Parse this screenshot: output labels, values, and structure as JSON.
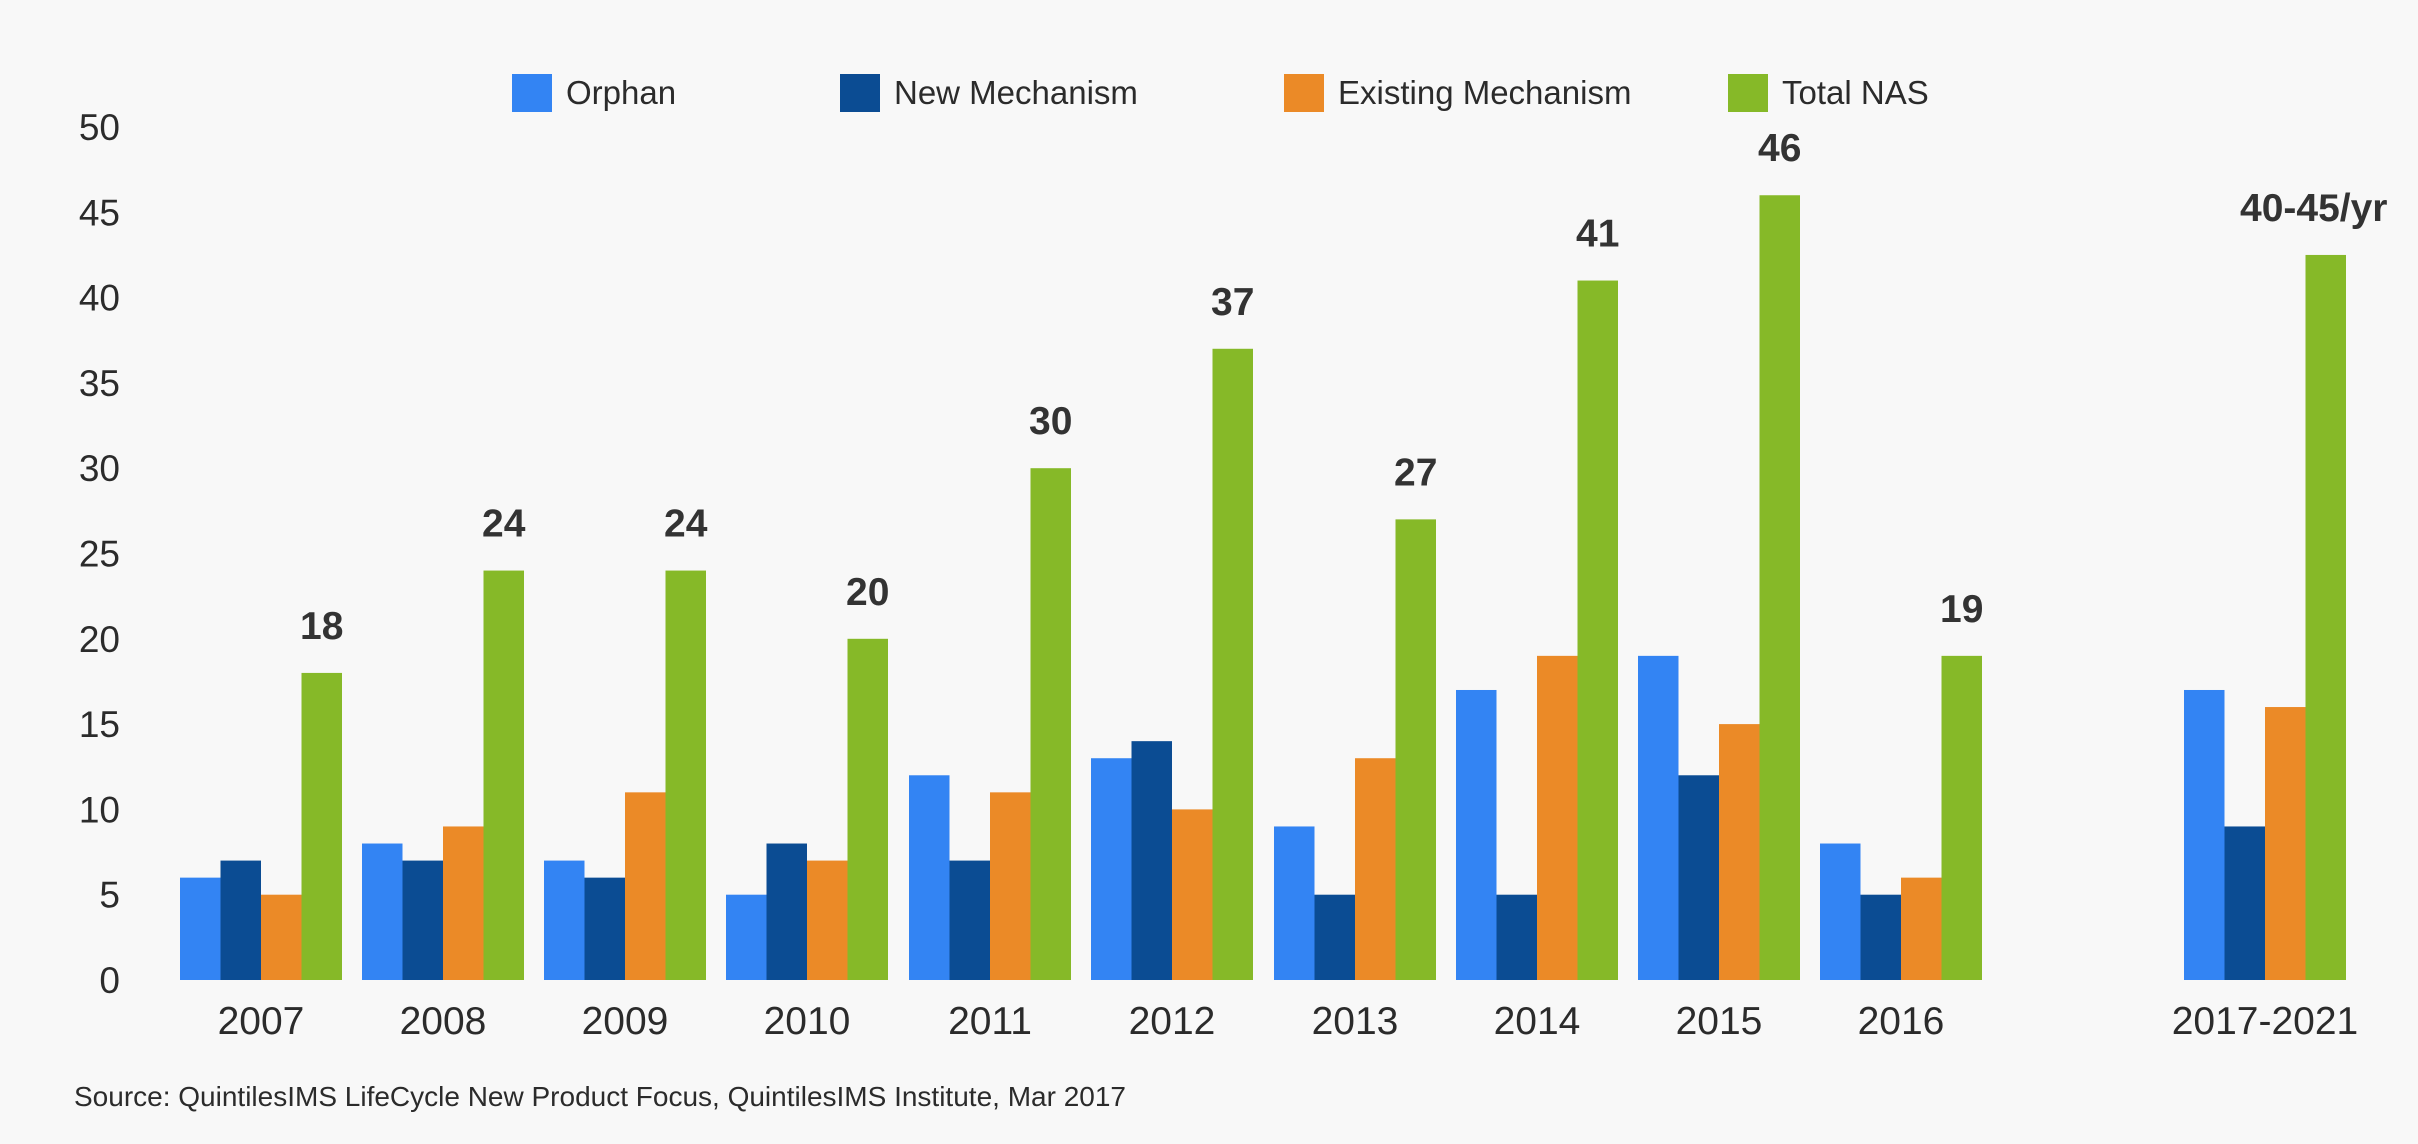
{
  "chart_data": {
    "type": "bar",
    "title": "",
    "xlabel": "",
    "ylabel": "",
    "ylim": [
      0,
      50
    ],
    "yticks": [
      0,
      5,
      10,
      15,
      20,
      25,
      30,
      35,
      40,
      45,
      50
    ],
    "grid": false,
    "legend_position": "top",
    "categories": [
      "2007",
      "2008",
      "2009",
      "2010",
      "2011",
      "2012",
      "2013",
      "2014",
      "2015",
      "2016",
      "2017-2021"
    ],
    "series": [
      {
        "name": "Orphan",
        "color": "#3384f3",
        "values": [
          6,
          8,
          7,
          5,
          12,
          13,
          9,
          17,
          19,
          8,
          17
        ]
      },
      {
        "name": "New Mechanism",
        "color": "#0b4c93",
        "values": [
          7,
          7,
          6,
          8,
          7,
          14,
          5,
          5,
          12,
          5,
          9
        ]
      },
      {
        "name": "Existing Mechanism",
        "color": "#eb8a27",
        "values": [
          5,
          9,
          11,
          7,
          11,
          10,
          13,
          19,
          15,
          6,
          16
        ]
      },
      {
        "name": "Total NAS",
        "color": "#86b928",
        "values": [
          18,
          24,
          24,
          20,
          30,
          37,
          27,
          41,
          46,
          19,
          42.5
        ]
      }
    ],
    "data_labels": [
      "18",
      "24",
      "24",
      "20",
      "30",
      "37",
      "27",
      "41",
      "46",
      "19",
      "40-45/yr"
    ],
    "source": "Source: QuintilesIMS LifeCycle New Product Focus, QuintilesIMS Institute, Mar 2017"
  }
}
